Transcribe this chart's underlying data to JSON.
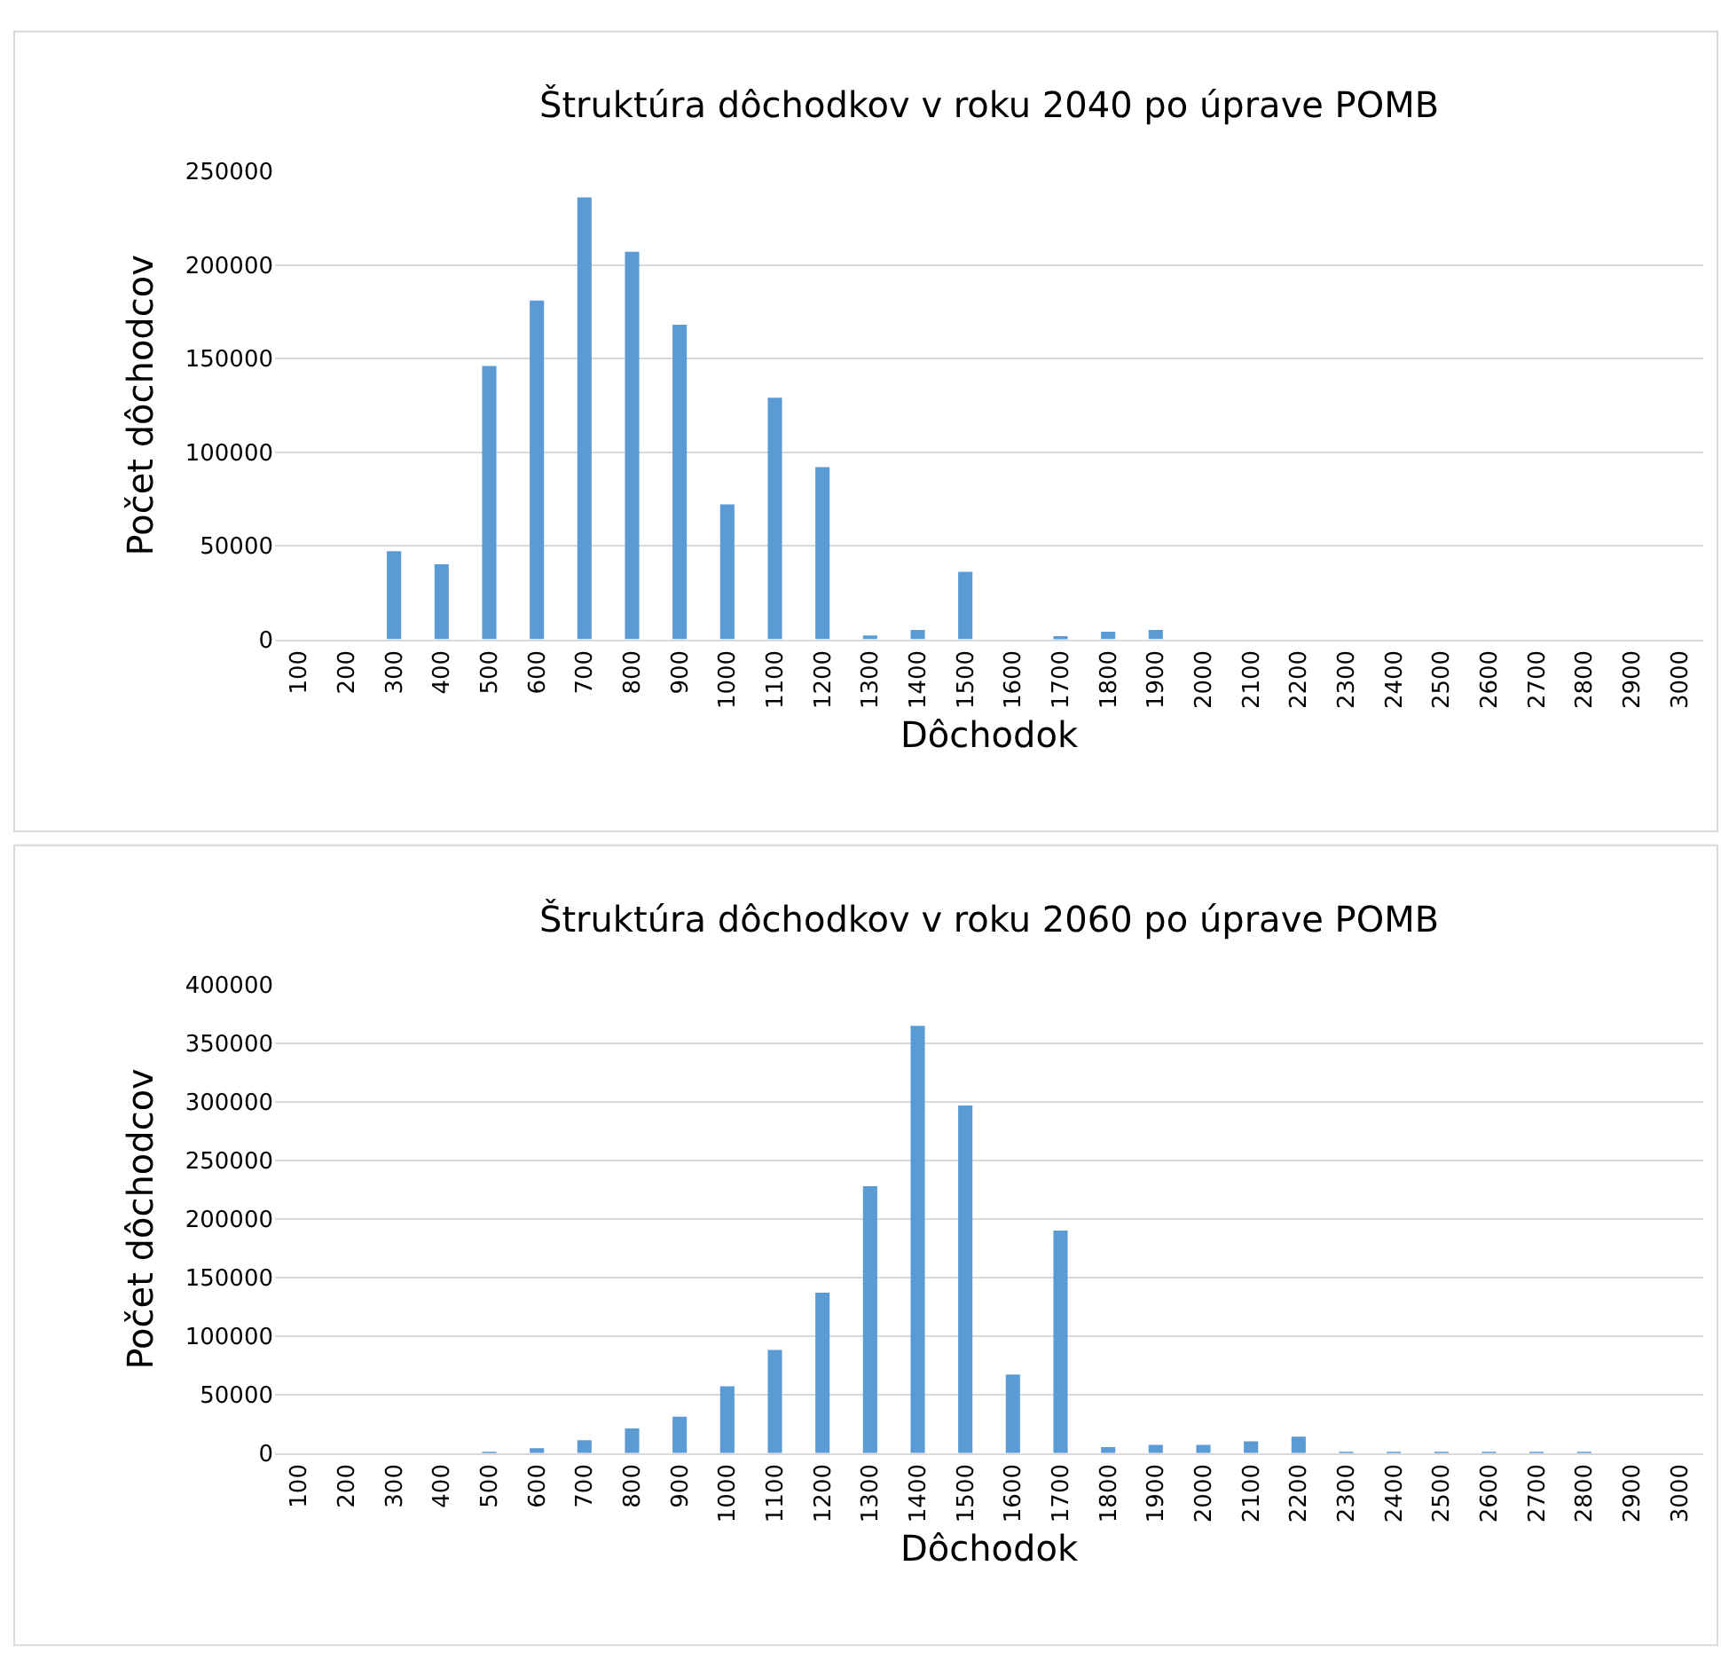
{
  "chart_data": [
    {
      "type": "bar",
      "title": "Štruktúra dôchodkov v roku 2040 po úprave POMB",
      "xlabel": "Dôchodok",
      "ylabel": "Počet dôchodcov",
      "categories": [
        "100",
        "200",
        "300",
        "400",
        "500",
        "600",
        "700",
        "800",
        "900",
        "1000",
        "1100",
        "1200",
        "1300",
        "1400",
        "1500",
        "1600",
        "1700",
        "1800",
        "1900",
        "2000",
        "2100",
        "2200",
        "2300",
        "2400",
        "2500",
        "2600",
        "2700",
        "2800",
        "2900",
        "3000"
      ],
      "series": [
        {
          "color": "#5b9bd5",
          "values": [
            0,
            0,
            47000,
            40000,
            146000,
            181000,
            236000,
            207000,
            168000,
            72000,
            129000,
            92000,
            2000,
            5000,
            36000,
            0,
            1000,
            4000,
            5000,
            0,
            0,
            0,
            0,
            0,
            0,
            0,
            0,
            0,
            0,
            0
          ]
        }
      ],
      "ylim": [
        0,
        250000
      ],
      "yticks": [
        0,
        50000,
        100000,
        150000,
        200000,
        250000
      ],
      "grid": "y"
    },
    {
      "type": "bar",
      "title": "Štruktúra dôchodkov v roku 2060 po úprave POMB",
      "xlabel": "Dôchodok",
      "ylabel": "Počet dôchodcov",
      "categories": [
        "100",
        "200",
        "300",
        "400",
        "500",
        "600",
        "700",
        "800",
        "900",
        "1000",
        "1100",
        "1200",
        "1300",
        "1400",
        "1500",
        "1600",
        "1700",
        "1800",
        "1900",
        "2000",
        "2100",
        "2200",
        "2300",
        "2400",
        "2500",
        "2600",
        "2700",
        "2800",
        "2900",
        "3000"
      ],
      "series": [
        {
          "color": "#5b9bd5",
          "values": [
            0,
            0,
            0,
            0,
            1000,
            4000,
            11000,
            21000,
            31000,
            57000,
            88000,
            137000,
            228000,
            365000,
            297000,
            67000,
            190000,
            5000,
            7000,
            7000,
            10000,
            14000,
            1000,
            1000,
            1000,
            1000,
            1000,
            1000,
            0,
            0
          ]
        }
      ],
      "ylim": [
        0,
        400000
      ],
      "yticks": [
        0,
        50000,
        100000,
        150000,
        200000,
        250000,
        300000,
        350000,
        400000
      ],
      "grid": "y"
    }
  ]
}
